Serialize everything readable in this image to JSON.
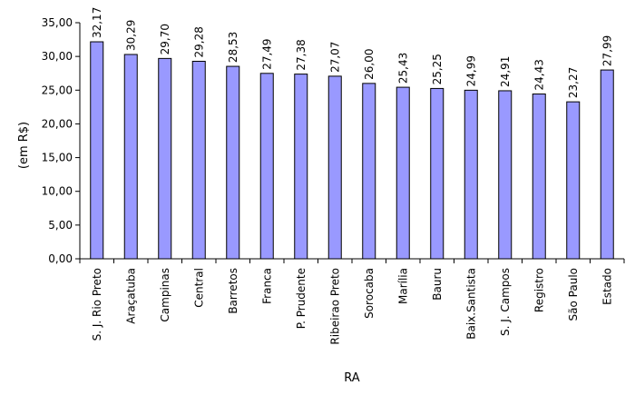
{
  "chart_data": {
    "type": "bar",
    "categories": [
      "S. J. Rio Preto",
      "Araçatuba",
      "Campinas",
      "Central",
      "Barretos",
      "Franca",
      "P. Prudente",
      "Ribeirao Preto",
      "Sorocaba",
      "Marília",
      "Bauru",
      "Baix.Santista",
      "S. J. Campos",
      "Registro",
      "São Paulo",
      "Estado"
    ],
    "values": [
      32.17,
      30.29,
      29.7,
      29.28,
      28.53,
      27.49,
      27.38,
      27.07,
      26.0,
      25.43,
      25.25,
      24.99,
      24.91,
      24.43,
      23.27,
      27.99
    ],
    "value_labels": [
      "32,17",
      "30,29",
      "29,70",
      "29,28",
      "28,53",
      "27,49",
      "27,38",
      "27,07",
      "26,00",
      "25,43",
      "25,25",
      "24,99",
      "24,91",
      "24,43",
      "23,27",
      "27,99"
    ],
    "title": "",
    "xlabel": "RA",
    "ylabel": "(em R$)",
    "ylim": [
      0,
      35
    ],
    "yticks": [
      "0,00",
      "5,00",
      "10,00",
      "15,00",
      "20,00",
      "25,00",
      "30,00",
      "35,00"
    ],
    "grid": false,
    "legend": "none",
    "bar_color": "#9999ff",
    "bar_border_color": "#000000"
  }
}
